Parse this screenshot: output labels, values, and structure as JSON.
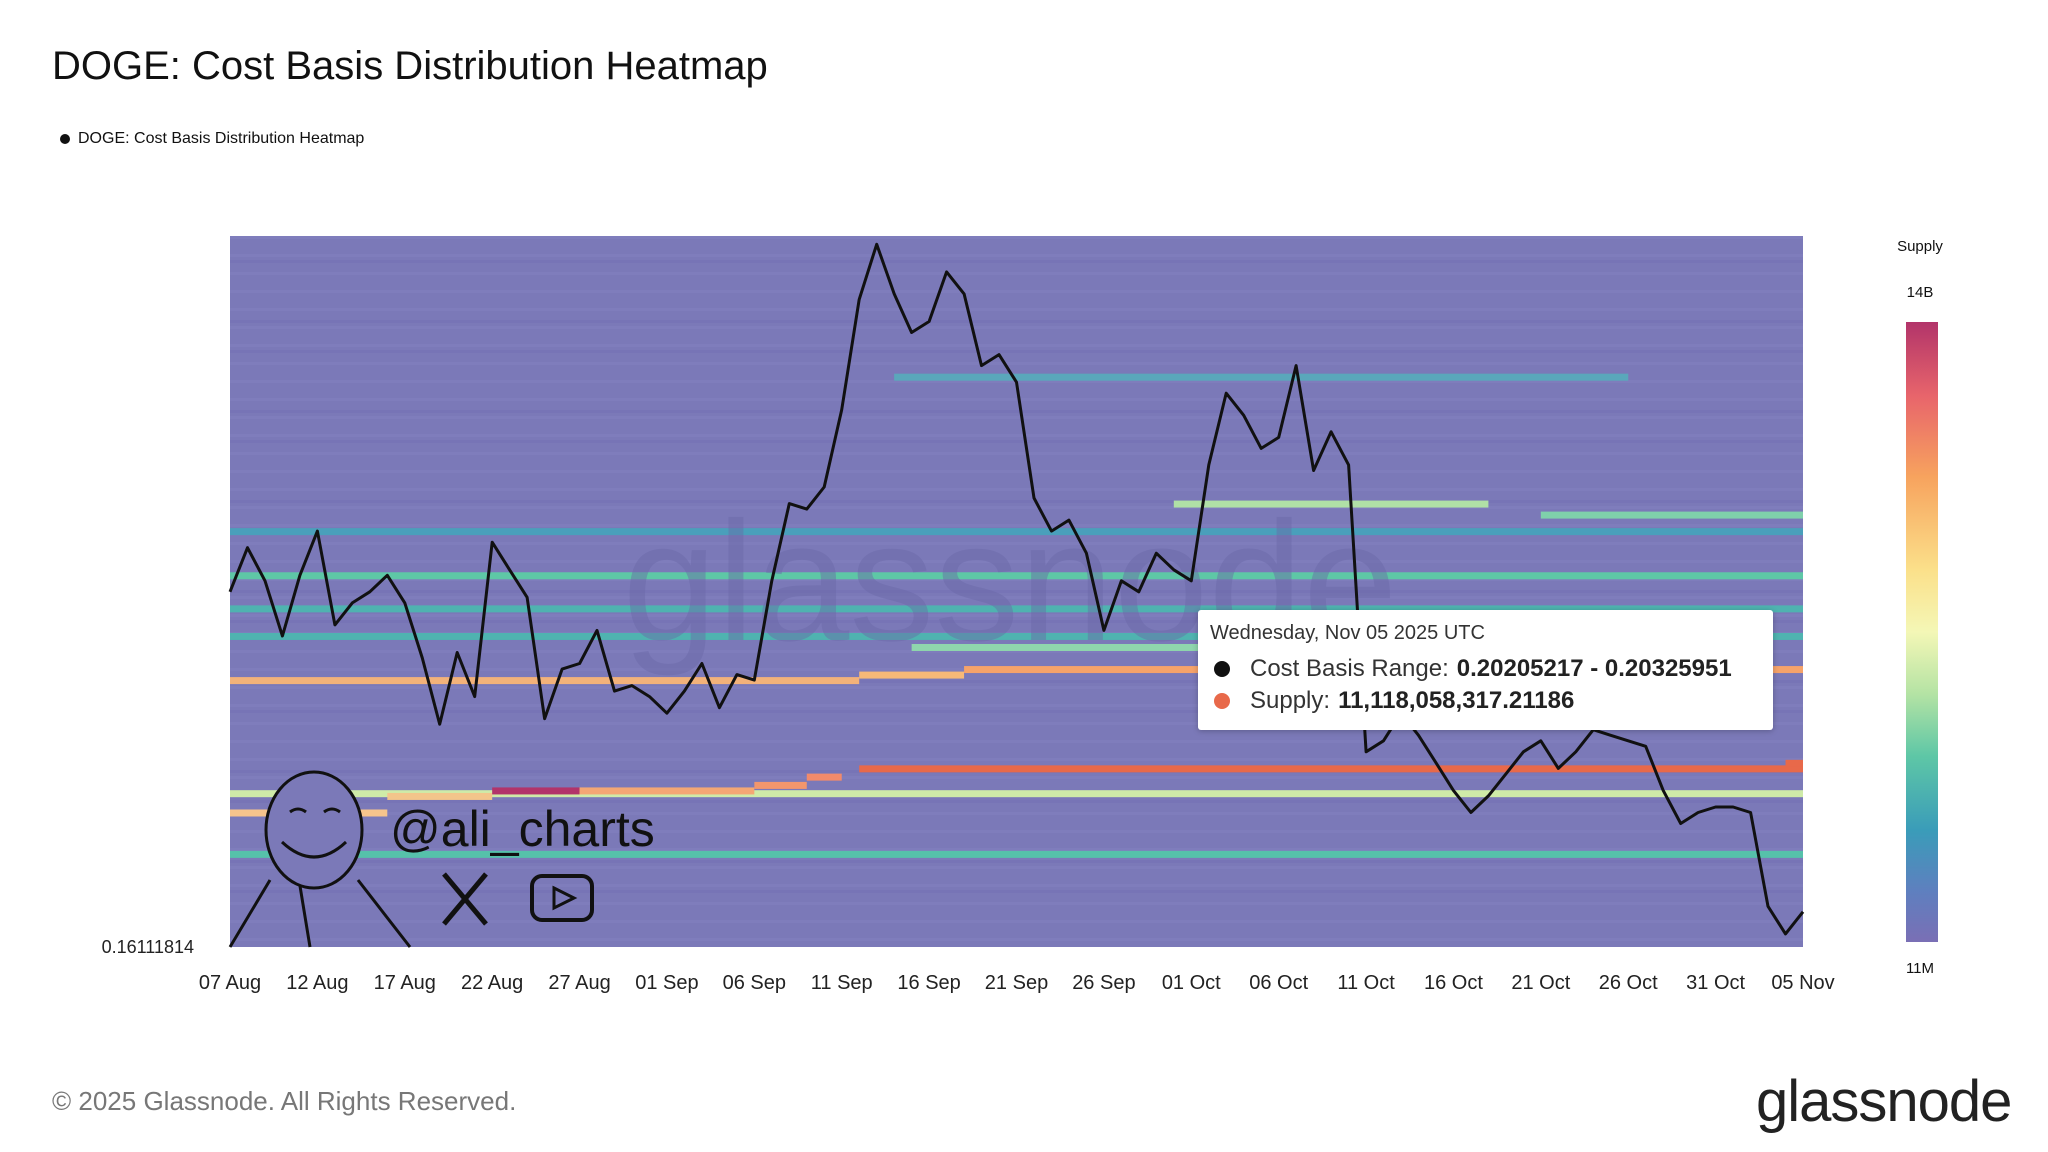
{
  "title": "DOGE: Cost Basis Distribution Heatmap",
  "legend_label": "DOGE: Cost Basis Distribution Heatmap",
  "colorbar": {
    "title": "Supply",
    "max_label": "14B",
    "min_label": "11M"
  },
  "tooltip": {
    "date": "Wednesday, Nov 05 2025 UTC",
    "range_label": "Cost Basis Range:",
    "range_value": "0.20205217 - 0.20325951",
    "supply_label": "Supply:",
    "supply_value": "11,118,058,317.21186",
    "range_dot_color": "#111111",
    "supply_dot_color": "#e8694a"
  },
  "watermark": {
    "handle": "@ali_charts",
    "icons": [
      "x-logo-icon",
      "youtube-icon",
      "avatar-icon"
    ]
  },
  "footer": "© 2025 Glassnode. All Rights Reserved.",
  "brand": "glassnode",
  "colors": {
    "background": "#7b79b8",
    "line": "#111111"
  },
  "chart_data": {
    "type": "heatmap",
    "title": "DOGE: Cost Basis Distribution Heatmap",
    "y_min_label": "0.16111814",
    "x_tick_labels": [
      "07 Aug",
      "12 Aug",
      "17 Aug",
      "22 Aug",
      "27 Aug",
      "01 Sep",
      "06 Sep",
      "11 Sep",
      "16 Sep",
      "21 Sep",
      "26 Sep",
      "01 Oct",
      "06 Oct",
      "11 Oct",
      "16 Oct",
      "21 Oct",
      "26 Oct",
      "31 Oct",
      "05 Nov"
    ],
    "x_range": [
      "2025-08-07",
      "2025-11-05"
    ],
    "y_range": [
      0.16111814,
      0.29
    ],
    "price_series": {
      "name": "price",
      "points": [
        [
          "2025-08-07",
          0.2255
        ],
        [
          "2025-08-08",
          0.2335
        ],
        [
          "2025-08-09",
          0.2275
        ],
        [
          "2025-08-10",
          0.2175
        ],
        [
          "2025-08-11",
          0.2285
        ],
        [
          "2025-08-12",
          0.2365
        ],
        [
          "2025-08-13",
          0.2195
        ],
        [
          "2025-08-14",
          0.2235
        ],
        [
          "2025-08-15",
          0.2255
        ],
        [
          "2025-08-16",
          0.2285
        ],
        [
          "2025-08-17",
          0.2235
        ],
        [
          "2025-08-18",
          0.2135
        ],
        [
          "2025-08-19",
          0.2015
        ],
        [
          "2025-08-20",
          0.2145
        ],
        [
          "2025-08-21",
          0.2065
        ],
        [
          "2025-08-22",
          0.2345
        ],
        [
          "2025-08-23",
          0.2295
        ],
        [
          "2025-08-24",
          0.2245
        ],
        [
          "2025-08-25",
          0.2025
        ],
        [
          "2025-08-26",
          0.2115
        ],
        [
          "2025-08-27",
          0.2125
        ],
        [
          "2025-08-28",
          0.2185
        ],
        [
          "2025-08-29",
          0.2075
        ],
        [
          "2025-08-30",
          0.2085
        ],
        [
          "2025-08-31",
          0.2065
        ],
        [
          "2025-09-01",
          0.2035
        ],
        [
          "2025-09-02",
          0.2075
        ],
        [
          "2025-09-03",
          0.2125
        ],
        [
          "2025-09-04",
          0.2045
        ],
        [
          "2025-09-05",
          0.2105
        ],
        [
          "2025-09-06",
          0.2095
        ],
        [
          "2025-09-07",
          0.2275
        ],
        [
          "2025-09-08",
          0.2415
        ],
        [
          "2025-09-09",
          0.2405
        ],
        [
          "2025-09-10",
          0.2445
        ],
        [
          "2025-09-11",
          0.2585
        ],
        [
          "2025-09-12",
          0.2785
        ],
        [
          "2025-09-13",
          0.2885
        ],
        [
          "2025-09-14",
          0.2795
        ],
        [
          "2025-09-15",
          0.2725
        ],
        [
          "2025-09-16",
          0.2745
        ],
        [
          "2025-09-17",
          0.2835
        ],
        [
          "2025-09-18",
          0.2795
        ],
        [
          "2025-09-19",
          0.2665
        ],
        [
          "2025-09-20",
          0.2685
        ],
        [
          "2025-09-21",
          0.2635
        ],
        [
          "2025-09-22",
          0.2425
        ],
        [
          "2025-09-23",
          0.2365
        ],
        [
          "2025-09-24",
          0.2385
        ],
        [
          "2025-09-25",
          0.2325
        ],
        [
          "2025-09-26",
          0.2185
        ],
        [
          "2025-09-27",
          0.2275
        ],
        [
          "2025-09-28",
          0.2255
        ],
        [
          "2025-09-29",
          0.2325
        ],
        [
          "2025-09-30",
          0.2295
        ],
        [
          "2025-10-01",
          0.2275
        ],
        [
          "2025-10-02",
          0.2485
        ],
        [
          "2025-10-03",
          0.2615
        ],
        [
          "2025-10-04",
          0.2575
        ],
        [
          "2025-10-05",
          0.2515
        ],
        [
          "2025-10-06",
          0.2535
        ],
        [
          "2025-10-07",
          0.2665
        ],
        [
          "2025-10-08",
          0.2475
        ],
        [
          "2025-10-09",
          0.2545
        ],
        [
          "2025-10-10",
          0.2485
        ],
        [
          "2025-10-11",
          0.1965
        ],
        [
          "2025-10-12",
          0.1985
        ],
        [
          "2025-10-13",
          0.2035
        ],
        [
          "2025-10-14",
          0.1995
        ],
        [
          "2025-10-15",
          0.1945
        ],
        [
          "2025-10-16",
          0.1895
        ],
        [
          "2025-10-17",
          0.1855
        ],
        [
          "2025-10-18",
          0.1885
        ],
        [
          "2025-10-19",
          0.1925
        ],
        [
          "2025-10-20",
          0.1965
        ],
        [
          "2025-10-21",
          0.1985
        ],
        [
          "2025-10-22",
          0.1935
        ],
        [
          "2025-10-23",
          0.1965
        ],
        [
          "2025-10-24",
          0.2005
        ],
        [
          "2025-10-25",
          0.1995
        ],
        [
          "2025-10-26",
          0.1985
        ],
        [
          "2025-10-27",
          0.1975
        ],
        [
          "2025-10-28",
          0.1895
        ],
        [
          "2025-10-29",
          0.1835
        ],
        [
          "2025-10-30",
          0.1855
        ],
        [
          "2025-10-31",
          0.1865
        ],
        [
          "2025-11-01",
          0.1865
        ],
        [
          "2025-11-02",
          0.1855
        ],
        [
          "2025-11-03",
          0.1685
        ],
        [
          "2025-11-04",
          0.1635
        ],
        [
          "2025-11-05",
          0.1675
        ]
      ]
    },
    "heat_bands": [
      {
        "price": 0.2225,
        "start": "2025-08-07",
        "end": "2025-11-05",
        "supply": "mid",
        "color": "#4fb3b0"
      },
      {
        "price": 0.2175,
        "start": "2025-08-07",
        "end": "2025-11-05",
        "supply": "mid",
        "color": "#4fb3b0"
      },
      {
        "price": 0.2365,
        "start": "2025-08-07",
        "end": "2025-11-05",
        "supply": "low",
        "color": "#4a9fbb"
      },
      {
        "price": 0.2285,
        "start": "2025-08-07",
        "end": "2025-11-05",
        "supply": "low",
        "color": "#5ec7a6"
      },
      {
        "price": 0.2095,
        "start": "2025-08-07",
        "end": "2025-09-12",
        "supply": "high",
        "color": "#f2b27a"
      },
      {
        "price": 0.2105,
        "start": "2025-09-12",
        "end": "2025-09-18",
        "supply": "high",
        "color": "#f7b978"
      },
      {
        "price": 0.2115,
        "start": "2025-09-18",
        "end": "2025-11-05",
        "supply": "high",
        "color": "#f6a36a"
      },
      {
        "price": 0.1935,
        "start": "2025-09-12",
        "end": "2025-11-05",
        "supply": "very-high",
        "color": "#e8694a"
      },
      {
        "price": 0.1945,
        "start": "2025-11-04",
        "end": "2025-11-05",
        "supply": "very-high",
        "color": "#e8694a"
      },
      {
        "price": 0.189,
        "start": "2025-08-07",
        "end": "2025-11-05",
        "supply": "mid-high",
        "color": "#cfeba8"
      },
      {
        "price": 0.1885,
        "start": "2025-08-16",
        "end": "2025-08-22",
        "supply": "high",
        "color": "#f3c58b"
      },
      {
        "price": 0.1895,
        "start": "2025-08-22",
        "end": "2025-08-27",
        "supply": "max",
        "color": "#b2346a"
      },
      {
        "price": 0.1895,
        "start": "2025-08-27",
        "end": "2025-09-06",
        "supply": "high",
        "color": "#f4a774"
      },
      {
        "price": 0.1905,
        "start": "2025-09-06",
        "end": "2025-09-09",
        "supply": "high",
        "color": "#f2966c"
      },
      {
        "price": 0.192,
        "start": "2025-09-09",
        "end": "2025-09-11",
        "supply": "high",
        "color": "#f28a6b"
      },
      {
        "price": 0.1855,
        "start": "2025-08-07",
        "end": "2025-08-16",
        "supply": "high",
        "color": "#f6c48c"
      },
      {
        "price": 0.178,
        "start": "2025-08-07",
        "end": "2025-11-05",
        "supply": "mid",
        "color": "#56c1aa"
      },
      {
        "price": 0.2155,
        "start": "2025-09-15",
        "end": "2025-10-19",
        "supply": "mid",
        "color": "#8fd6ad"
      },
      {
        "price": 0.2415,
        "start": "2025-09-30",
        "end": "2025-10-18",
        "supply": "mid",
        "color": "#b0e0a6"
      },
      {
        "price": 0.2395,
        "start": "2025-10-21",
        "end": "2025-11-05",
        "supply": "mid",
        "color": "#7fd0ab"
      },
      {
        "price": 0.2645,
        "start": "2025-09-14",
        "end": "2025-10-26",
        "supply": "low",
        "color": "#5aa7bb"
      }
    ]
  }
}
